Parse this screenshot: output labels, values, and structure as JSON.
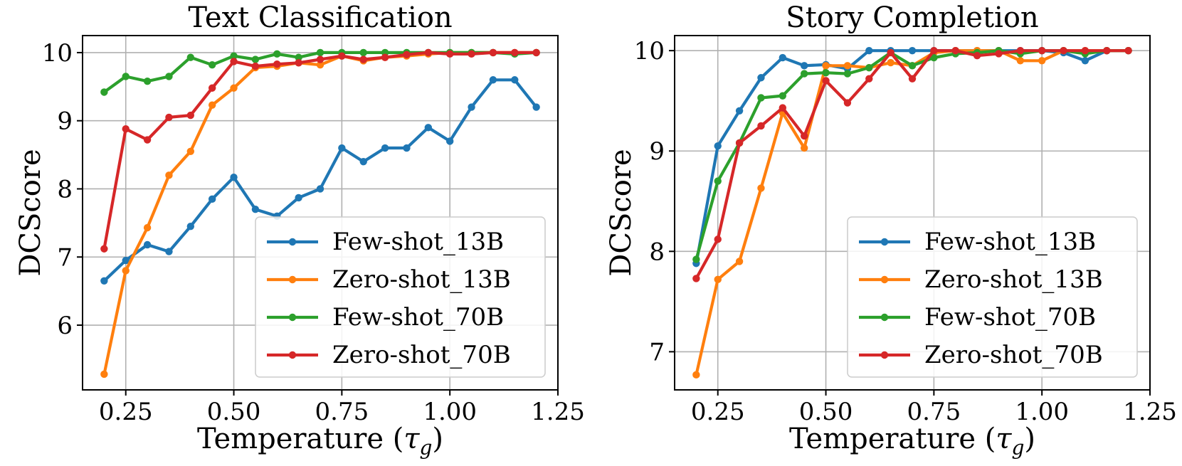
{
  "chart_data": [
    {
      "type": "line",
      "title": "Text Classification",
      "xlabel": "Temperature (τ_g)",
      "xlabel_main": "Temperature (",
      "xlabel_symbol": "τ",
      "xlabel_sub": "g",
      "xlabel_close": ")",
      "ylabel": "DCScore",
      "xlim": [
        0.15,
        1.25
      ],
      "ylim": [
        5.05,
        10.25
      ],
      "xticks": [
        0.25,
        0.5,
        0.75,
        1.0,
        1.25
      ],
      "xtick_labels": [
        "0.25",
        "0.50",
        "0.75",
        "1.00",
        "1.25"
      ],
      "yticks": [
        6,
        7,
        8,
        9,
        10
      ],
      "ytick_labels": [
        "6",
        "7",
        "8",
        "9",
        "10"
      ],
      "grid": true,
      "legend_position": "bottom-right",
      "x": [
        0.2,
        0.25,
        0.3,
        0.35,
        0.4,
        0.45,
        0.5,
        0.55,
        0.6,
        0.65,
        0.7,
        0.75,
        0.8,
        0.85,
        0.9,
        0.95,
        1.0,
        1.05,
        1.1,
        1.15,
        1.2
      ],
      "series": [
        {
          "name": "Few-shot_13B",
          "color": "#1f77b4",
          "values": [
            6.65,
            6.95,
            7.18,
            7.08,
            7.45,
            7.85,
            8.17,
            7.7,
            7.6,
            7.87,
            8.0,
            8.6,
            8.4,
            8.6,
            8.6,
            8.9,
            8.7,
            9.2,
            9.6,
            9.6,
            9.2
          ]
        },
        {
          "name": "Zero-shot_13B",
          "color": "#ff7f0e",
          "values": [
            5.28,
            6.8,
            7.43,
            8.2,
            8.55,
            9.23,
            9.48,
            9.78,
            9.8,
            9.85,
            9.82,
            9.95,
            9.88,
            9.93,
            9.95,
            9.98,
            10.0,
            10.0,
            10.0,
            10.0,
            10.0
          ]
        },
        {
          "name": "Few-shot_70B",
          "color": "#2ca02c",
          "values": [
            9.42,
            9.65,
            9.58,
            9.65,
            9.93,
            9.82,
            9.95,
            9.9,
            9.98,
            9.93,
            10.0,
            10.0,
            10.0,
            10.0,
            10.0,
            10.0,
            10.0,
            10.0,
            10.0,
            9.98,
            10.0
          ]
        },
        {
          "name": "Zero-shot_70B",
          "color": "#d62728",
          "values": [
            7.12,
            8.88,
            8.72,
            9.05,
            9.08,
            9.48,
            9.87,
            9.8,
            9.83,
            9.85,
            9.9,
            9.95,
            9.9,
            9.93,
            9.97,
            10.0,
            9.98,
            9.98,
            10.0,
            10.0,
            10.0
          ]
        }
      ]
    },
    {
      "type": "line",
      "title": "Story Completion",
      "xlabel": "Temperature (τ_g)",
      "xlabel_main": "Temperature (",
      "xlabel_symbol": "τ",
      "xlabel_sub": "g",
      "xlabel_close": ")",
      "ylabel": "DCScore",
      "xlim": [
        0.15,
        1.25
      ],
      "ylim": [
        6.62,
        10.15
      ],
      "xticks": [
        0.25,
        0.5,
        0.75,
        1.0,
        1.25
      ],
      "xtick_labels": [
        "0.25",
        "0.50",
        "0.75",
        "1.00",
        "1.25"
      ],
      "yticks": [
        7,
        8,
        9,
        10
      ],
      "ytick_labels": [
        "7",
        "8",
        "9",
        "10"
      ],
      "grid": true,
      "legend_position": "bottom-right",
      "x": [
        0.2,
        0.25,
        0.3,
        0.35,
        0.4,
        0.45,
        0.5,
        0.55,
        0.6,
        0.65,
        0.7,
        0.75,
        0.8,
        0.85,
        0.9,
        0.95,
        1.0,
        1.05,
        1.1,
        1.15,
        1.2
      ],
      "series": [
        {
          "name": "Few-shot_13B",
          "color": "#1f77b4",
          "values": [
            7.88,
            9.05,
            9.4,
            9.73,
            9.93,
            9.85,
            9.86,
            9.82,
            10.0,
            10.0,
            10.0,
            10.0,
            10.0,
            10.0,
            10.0,
            10.0,
            10.0,
            9.98,
            9.9,
            10.0,
            10.0
          ]
        },
        {
          "name": "Zero-shot_13B",
          "color": "#ff7f0e",
          "values": [
            6.77,
            7.72,
            7.9,
            8.63,
            9.38,
            9.03,
            9.85,
            9.85,
            9.83,
            9.88,
            9.85,
            9.98,
            10.0,
            10.0,
            10.0,
            9.9,
            9.9,
            10.0,
            10.0,
            10.0,
            10.0
          ]
        },
        {
          "name": "Few-shot_70B",
          "color": "#2ca02c",
          "values": [
            7.92,
            8.7,
            9.08,
            9.53,
            9.55,
            9.77,
            9.78,
            9.77,
            9.83,
            9.98,
            9.85,
            9.93,
            9.97,
            9.98,
            10.0,
            9.97,
            10.0,
            10.0,
            9.97,
            10.0,
            10.0
          ]
        },
        {
          "name": "Zero-shot_70B",
          "color": "#d62728",
          "values": [
            7.73,
            8.12,
            9.08,
            9.25,
            9.43,
            9.15,
            9.7,
            9.48,
            9.72,
            9.98,
            9.72,
            10.0,
            10.0,
            9.95,
            9.97,
            10.0,
            10.0,
            10.0,
            10.0,
            10.0,
            10.0
          ]
        }
      ]
    }
  ]
}
